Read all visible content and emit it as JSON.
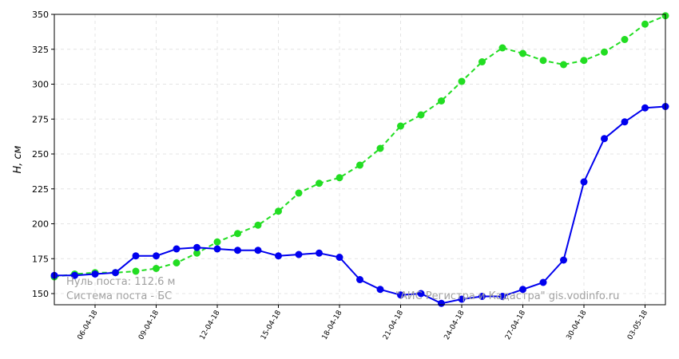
{
  "chart_data": {
    "type": "line",
    "ylabel": "H, см",
    "ylim": [
      142,
      350
    ],
    "yticks": [
      150,
      175,
      200,
      225,
      250,
      275,
      300,
      325,
      350
    ],
    "x": [
      "04-04-18",
      "05-04-18",
      "06-04-18",
      "07-04-18",
      "08-04-18",
      "09-04-18",
      "10-04-18",
      "11-04-18",
      "12-04-18",
      "13-04-18",
      "14-04-18",
      "15-04-18",
      "16-04-18",
      "17-04-18",
      "18-04-18",
      "19-04-18",
      "20-04-18",
      "21-04-18",
      "22-04-18",
      "23-04-18",
      "24-04-18",
      "25-04-18",
      "26-04-18",
      "27-04-18",
      "28-04-18",
      "29-04-18",
      "30-04-18",
      "01-05-18",
      "02-05-18",
      "03-05-18",
      "04-05-18"
    ],
    "xticks": [
      "06-04-18",
      "09-04-18",
      "12-04-18",
      "15-04-18",
      "18-04-18",
      "21-04-18",
      "24-04-18",
      "27-04-18",
      "30-04-18",
      "03-05-18"
    ],
    "grid": true,
    "series": [
      {
        "color": "#0000ee",
        "style": "solid",
        "values": [
          163,
          163,
          164,
          165,
          177,
          177,
          182,
          183,
          182,
          181,
          181,
          177,
          178,
          179,
          176,
          160,
          153,
          149,
          150,
          143,
          146,
          148,
          148,
          153,
          158,
          174,
          230,
          261,
          273,
          283,
          284
        ]
      },
      {
        "color": "#22dd22",
        "style": "dashed",
        "values": [
          162,
          164,
          165,
          165,
          166,
          168,
          172,
          179,
          187,
          193,
          199,
          209,
          222,
          229,
          233,
          242,
          254,
          270,
          278,
          288,
          302,
          316,
          326,
          322,
          317,
          314,
          317,
          323,
          332,
          343,
          349
        ]
      }
    ],
    "annotations": {
      "line1": "Нуль поста: 112.6 м",
      "line2": "Система поста - БС",
      "source": "\"АИС Регистра и Кадастра\"   gis.vodinfo.ru"
    }
  }
}
